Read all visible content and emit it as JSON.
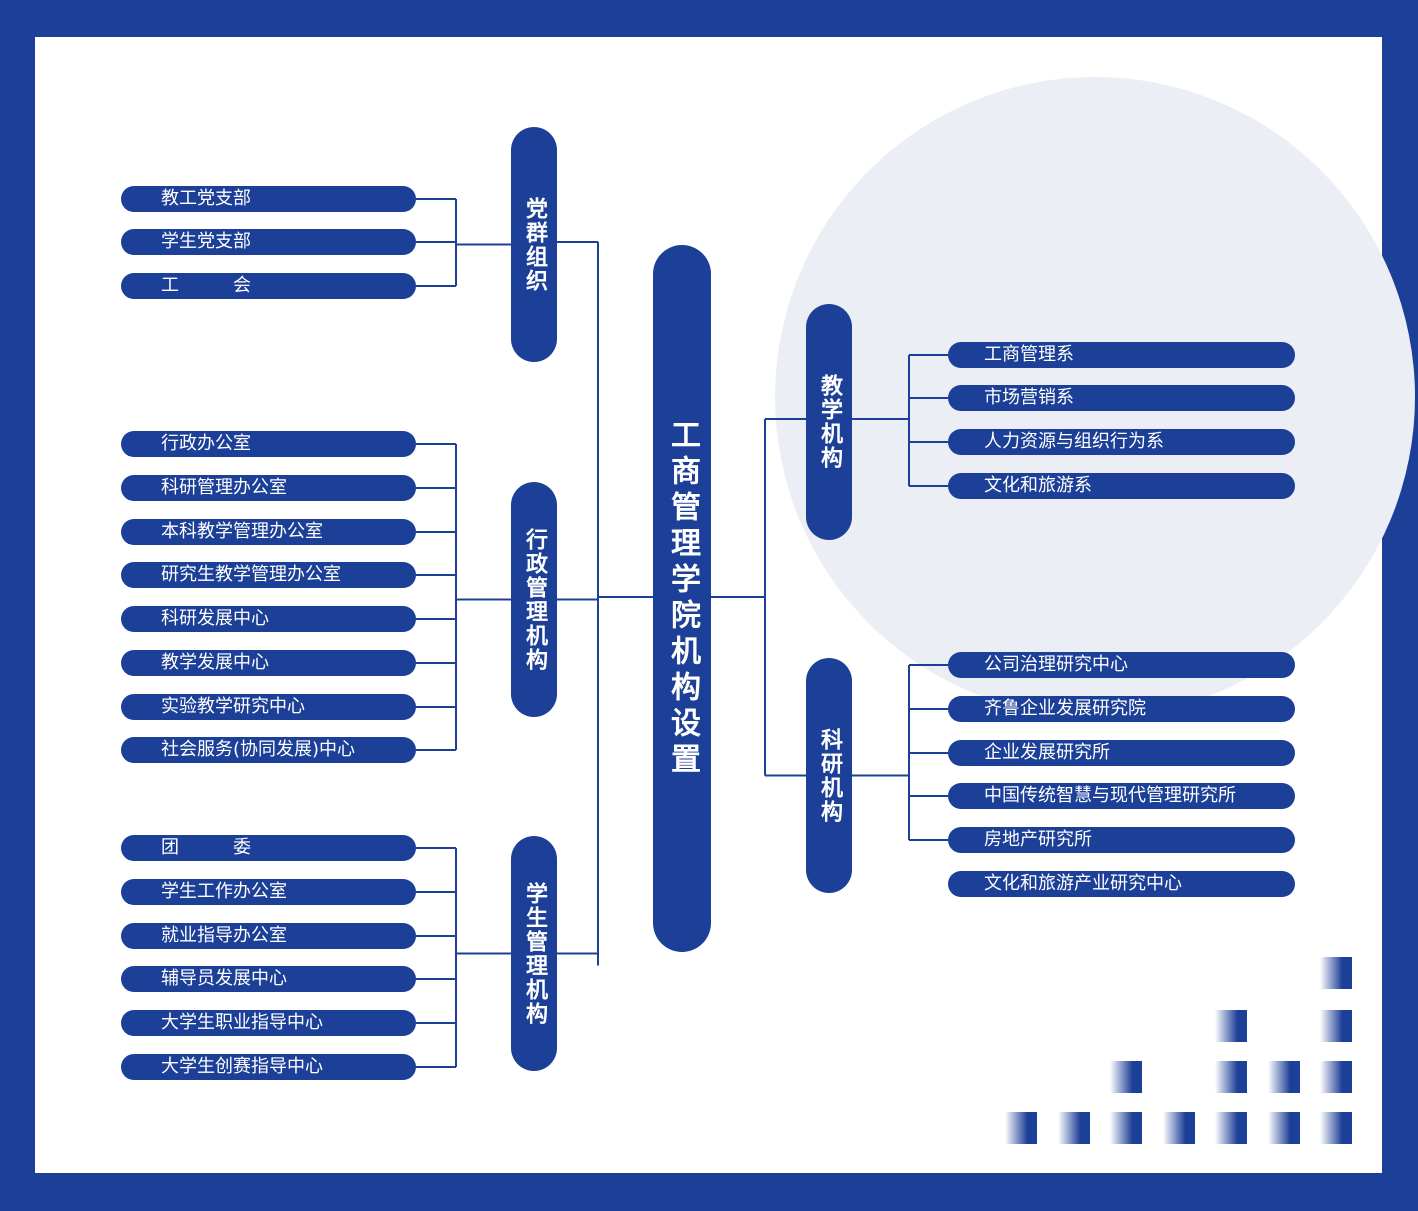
{
  "title": "工商管理学院机构设置",
  "left": [
    {
      "label": "党群组织",
      "children": [
        "教工党支部",
        "学生党支部",
        "工　　　会"
      ]
    },
    {
      "label": "行政管理机构",
      "children": [
        "行政办公室",
        "科研管理办公室",
        "本科教学管理办公室",
        "研究生教学管理办公室",
        "科研发展中心",
        "教学发展中心",
        "实验教学研究中心",
        "社会服务(协同发展)中心"
      ]
    },
    {
      "label": "学生管理机构",
      "children": [
        "团　　　委",
        "学生工作办公室",
        "就业指导办公室",
        "辅导员发展中心",
        "大学生职业指导中心",
        "大学生创赛指导中心"
      ]
    }
  ],
  "right": [
    {
      "label": "教学机构",
      "children": [
        "工商管理系",
        "市场营销系",
        "人力资源与组织行为系",
        "文化和旅游系"
      ]
    },
    {
      "label": "科研机构",
      "children": [
        "公司治理研究中心",
        "齐鲁企业发展研究院",
        "企业发展研究所",
        "中国传统智慧与现代管理研究所",
        "房地产研究所",
        "文化和旅游产业研究中心"
      ]
    }
  ]
}
